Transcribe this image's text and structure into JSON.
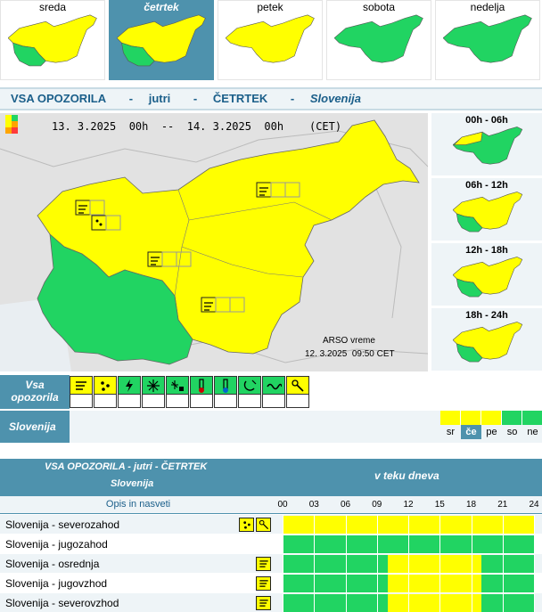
{
  "colors": {
    "accent": "#4e92ad",
    "green": "#21d462",
    "yellow": "#ffff00",
    "orange": "#ffa500",
    "red": "#ff3b3b",
    "title": "#1b5f8a"
  },
  "days": [
    {
      "label": "sreda",
      "active": false,
      "map": "yellow-green-sw"
    },
    {
      "label": "četrtek",
      "active": true,
      "map": "yellow-green-sw"
    },
    {
      "label": "petek",
      "active": false,
      "map": "yellow"
    },
    {
      "label": "sobota",
      "active": false,
      "map": "green"
    },
    {
      "label": "nedelja",
      "active": false,
      "map": "green"
    }
  ],
  "banner": {
    "title": "VSA OPOZORILA",
    "dash": "-",
    "when": "jutri",
    "day": "ČETRTEK",
    "region": "Slovenija"
  },
  "main_map": {
    "daterange": "13. 3.2025  00h  --  14. 3.2025  00h    (CET)",
    "credit_line1": "ARSO vreme",
    "credit_line2": "12. 3.2025  09:50 CET"
  },
  "intervals": [
    {
      "label": "00h - 06h",
      "map": "green-north-yellow"
    },
    {
      "label": "06h - 12h",
      "map": "yellow-green-sw"
    },
    {
      "label": "12h - 18h",
      "map": "yellow-green-sw"
    },
    {
      "label": "18h - 24h",
      "map": "yellow-green-sw"
    }
  ],
  "type_bar": {
    "label_line1": "Vsa",
    "label_line2": "opozorila",
    "icons": [
      {
        "name": "wind-icon",
        "level": "yellow"
      },
      {
        "name": "rain-icon",
        "level": "yellow"
      },
      {
        "name": "thunderstorm-icon",
        "level": "green"
      },
      {
        "name": "snow-icon",
        "level": "green"
      },
      {
        "name": "snow-ice-icon",
        "level": "green"
      },
      {
        "name": "high-temperature-icon",
        "level": "green"
      },
      {
        "name": "low-temperature-icon",
        "level": "green"
      },
      {
        "name": "fog-icon",
        "level": "green"
      },
      {
        "name": "coastal-event-icon",
        "level": "green"
      },
      {
        "name": "wind-rain-combined-icon",
        "level": "yellow"
      }
    ]
  },
  "slovenia_row": {
    "label": "Slovenija",
    "days": [
      {
        "label": "sr",
        "level": "yellow",
        "active": false
      },
      {
        "label": "če",
        "level": "yellow",
        "active": true
      },
      {
        "label": "pe",
        "level": "yellow",
        "active": false
      },
      {
        "label": "so",
        "level": "green",
        "active": false
      },
      {
        "label": "ne",
        "level": "green",
        "active": false
      }
    ]
  },
  "timeline": {
    "header_line1": "VSA OPOZORILA - jutri - ČETRTEK",
    "header_line2": "Slovenija",
    "header_right": "v teku dneva",
    "opis": "Opis in nasveti",
    "hours": [
      "00",
      "03",
      "06",
      "09",
      "12",
      "15",
      "18",
      "21",
      "24"
    ],
    "rows": [
      {
        "name": "Slovenija - severozahod",
        "icons": [
          "rain-icon",
          "wind-rain-icon"
        ],
        "segments": [
          {
            "from": 0,
            "to": 24,
            "level": "yellow"
          }
        ]
      },
      {
        "name": "Slovenija - jugozahod",
        "icons": [],
        "segments": [
          {
            "from": 0,
            "to": 24,
            "level": "green"
          }
        ]
      },
      {
        "name": "Slovenija - osrednja",
        "icons": [
          "wind-icon"
        ],
        "segments": [
          {
            "from": 0,
            "to": 10,
            "level": "green"
          },
          {
            "from": 10,
            "to": 19,
            "level": "yellow"
          },
          {
            "from": 19,
            "to": 24,
            "level": "green"
          }
        ]
      },
      {
        "name": "Slovenija - jugovzhod",
        "icons": [
          "wind-icon"
        ],
        "segments": [
          {
            "from": 0,
            "to": 10,
            "level": "green"
          },
          {
            "from": 10,
            "to": 19,
            "level": "yellow"
          },
          {
            "from": 19,
            "to": 24,
            "level": "green"
          }
        ]
      },
      {
        "name": "Slovenija - severovzhod",
        "icons": [
          "wind-icon"
        ],
        "segments": [
          {
            "from": 0,
            "to": 10,
            "level": "green"
          },
          {
            "from": 10,
            "to": 19,
            "level": "yellow"
          },
          {
            "from": 19,
            "to": 24,
            "level": "green"
          }
        ]
      }
    ]
  }
}
